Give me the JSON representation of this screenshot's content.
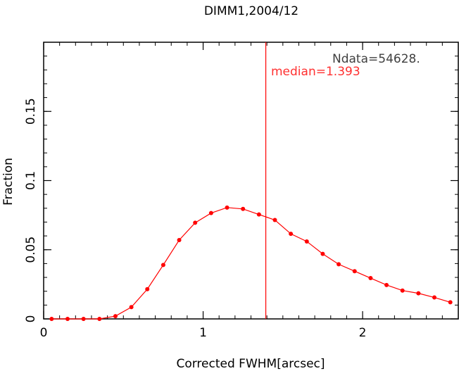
{
  "chart_data": {
    "type": "line",
    "title": "DIMM1,2004/12",
    "xlabel": "Corrected FWHM[arcsec]",
    "ylabel": "Fraction",
    "xlim": [
      0,
      2.6
    ],
    "ylim": [
      0,
      0.2
    ],
    "x_ticks": [
      {
        "value": 0,
        "label": "0"
      },
      {
        "value": 1,
        "label": "1"
      },
      {
        "value": 2,
        "label": "2"
      }
    ],
    "y_ticks": [
      {
        "value": 0,
        "label": "0"
      },
      {
        "value": 0.05,
        "label": "0.05"
      },
      {
        "value": 0.1,
        "label": "0.1"
      },
      {
        "value": 0.15,
        "label": "0.15"
      }
    ],
    "grid": false,
    "series": [
      {
        "color": "#ff0000",
        "x": [
          0.05,
          0.15,
          0.25,
          0.35,
          0.45,
          0.55,
          0.65,
          0.75,
          0.85,
          0.95,
          1.05,
          1.15,
          1.25,
          1.35,
          1.45,
          1.55,
          1.65,
          1.75,
          1.85,
          1.95,
          2.05,
          2.15,
          2.25,
          2.35,
          2.45,
          2.55
        ],
        "y": [
          0.0,
          0.0,
          0.0,
          0.0,
          0.002,
          0.0085,
          0.0215,
          0.039,
          0.057,
          0.0695,
          0.0765,
          0.0805,
          0.0795,
          0.0755,
          0.0715,
          0.0615,
          0.056,
          0.047,
          0.0395,
          0.0345,
          0.0295,
          0.0245,
          0.0205,
          0.0185,
          0.0155,
          0.012
        ]
      }
    ],
    "vertical_line": {
      "x": 1.393,
      "color": "#ff0000"
    },
    "annotations": [
      {
        "id": "ndata",
        "text": "Ndata=54628.",
        "color": "#404040"
      },
      {
        "id": "median",
        "text": "median=1.393",
        "color": "#ff3030"
      }
    ]
  }
}
